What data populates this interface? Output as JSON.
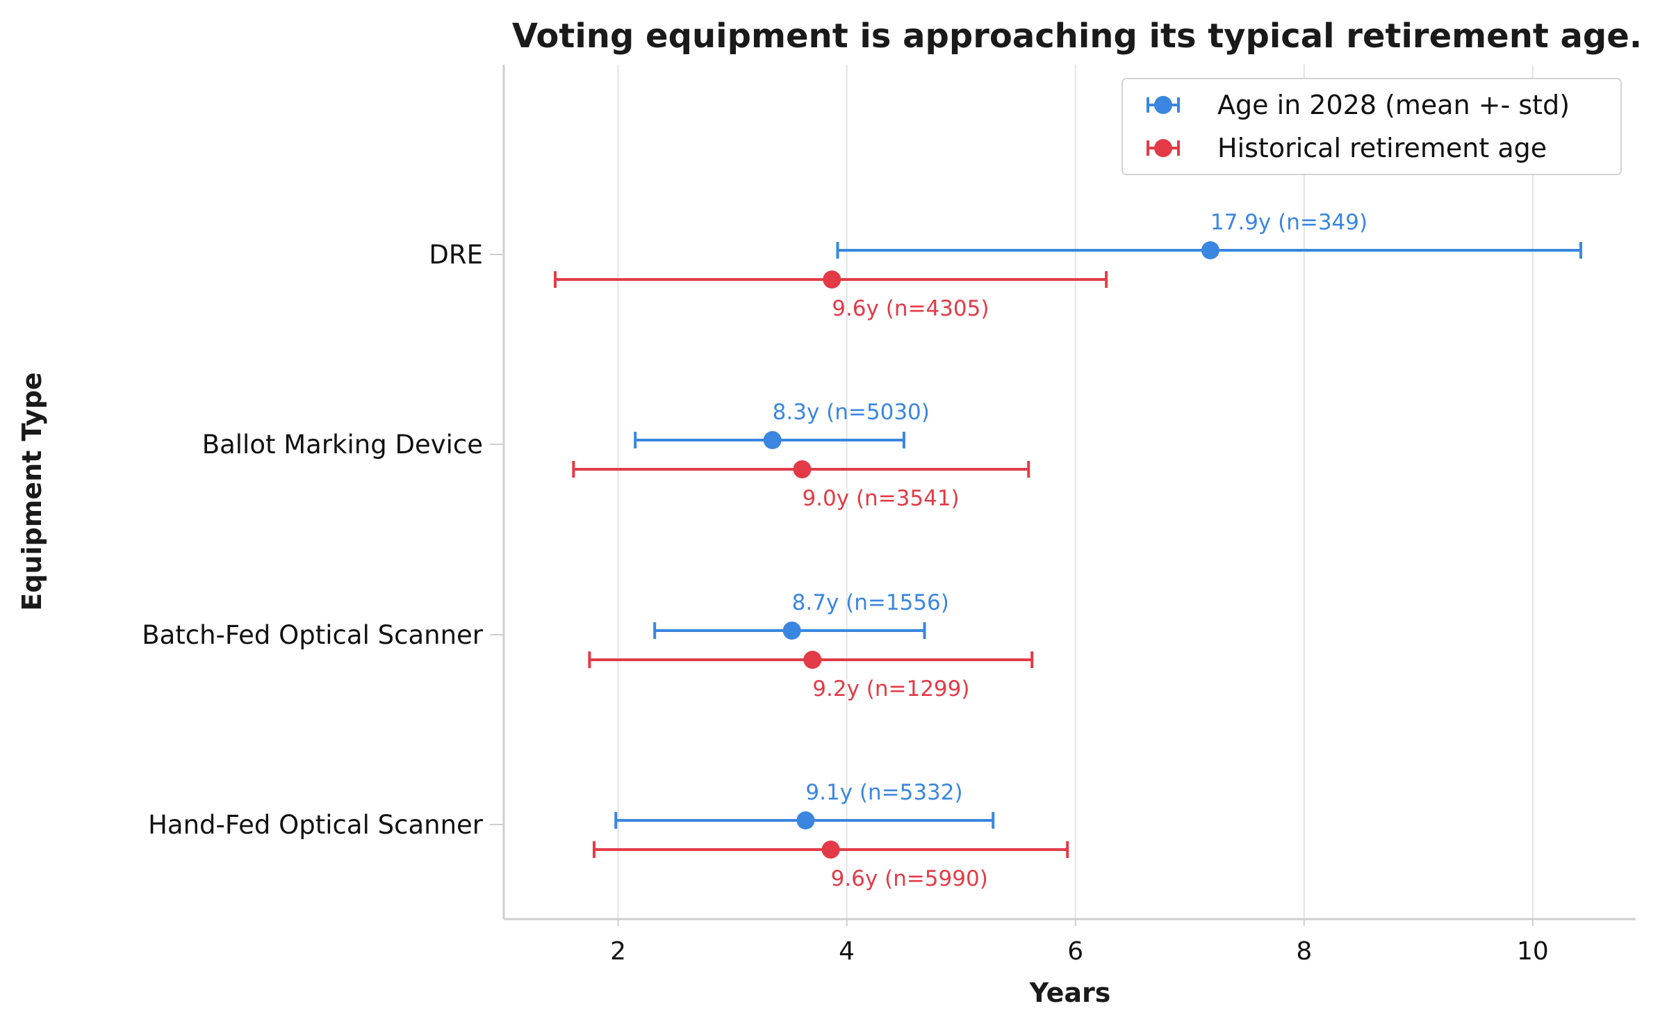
{
  "chart_data": {
    "type": "errorbar",
    "orientation": "horizontal",
    "title": "Voting equipment is approaching its typical retirement age.",
    "xlabel": "Years",
    "ylabel": "Equipment Type",
    "xlim": [
      1.0,
      10.9
    ],
    "xticks": [
      2,
      4,
      6,
      8,
      10
    ],
    "grid": "vertical",
    "legend_position": "top-right",
    "categories": [
      "DRE",
      "Ballot Marking Device",
      "Batch-Fed Optical Scanner",
      "Hand-Fed Optical Scanner"
    ],
    "series": [
      {
        "name": "Age in 2028 (mean +- std)",
        "color": "#3a86e0",
        "points": [
          {
            "x": 7.18,
            "low": 3.92,
            "high": 10.42,
            "label": "17.9y (n=349)"
          },
          {
            "x": 3.35,
            "low": 2.15,
            "high": 4.5,
            "label": "8.3y (n=5030)"
          },
          {
            "x": 3.52,
            "low": 2.32,
            "high": 4.68,
            "label": "8.7y (n=1556)"
          },
          {
            "x": 3.64,
            "low": 1.98,
            "high": 5.28,
            "label": "9.1y (n=5332)"
          }
        ]
      },
      {
        "name": "Historical retirement age",
        "color": "#e23b47",
        "points": [
          {
            "x": 3.87,
            "low": 1.45,
            "high": 6.27,
            "label": "9.6y (n=4305)"
          },
          {
            "x": 3.61,
            "low": 1.61,
            "high": 5.59,
            "label": "9.0y (n=3541)"
          },
          {
            "x": 3.7,
            "low": 1.75,
            "high": 5.62,
            "label": "9.2y (n=1299)"
          },
          {
            "x": 3.86,
            "low": 1.79,
            "high": 5.93,
            "label": "9.6y (n=5990)"
          }
        ]
      }
    ]
  }
}
